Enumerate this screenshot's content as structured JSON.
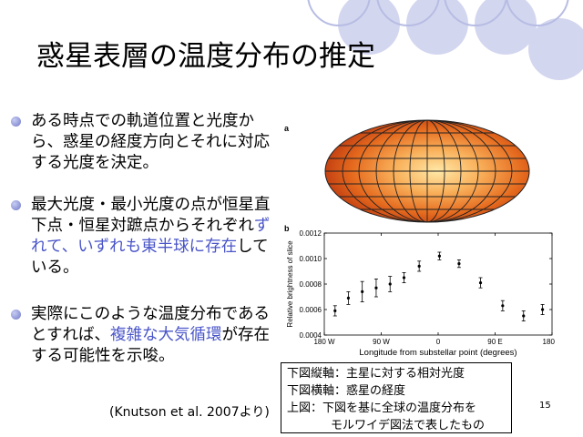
{
  "slide": {
    "title": "惑星表層の温度分布の推定",
    "bullets": [
      {
        "text": "ある時点での軌道位置と光度から、惑星の経度方向とそれに対応する光度を決定。",
        "highlight": "",
        "after": ""
      },
      {
        "text": "最大光度・最小光度の点が恒星直下点・恒星対蹠点からそれぞれ",
        "highlight": "ずれて、いずれも東半球に存在",
        "after": "している。"
      },
      {
        "text": "実際にこのような温度分布であるとすれば、",
        "highlight": "複雑な大気循環",
        "after": "が存在する可能性を示唆。"
      }
    ],
    "citation": "(Knutson et al. 2007より)",
    "page_number": "15",
    "accent_color": "#4a55c8"
  },
  "figure": {
    "panel_a_label": "a",
    "panel_b_label": "b"
  },
  "caption": {
    "lines": [
      "下図縦軸：主星に対する相対光度",
      "下図横軸：惑星の経度",
      "上図：下図を基に全球の温度分布を",
      "モルワイデ図法で表したもの"
    ]
  },
  "chart_data": {
    "type": "scatter",
    "xlabel": "Longitude from substellar point (degrees)",
    "ylabel": "Relative brightness of slice",
    "xlim": [
      -180,
      180
    ],
    "ylim": [
      0.0004,
      0.0012
    ],
    "x_ticks": [
      -180,
      -90,
      0,
      90,
      180
    ],
    "x_tick_labels": [
      "180 W",
      "90 W",
      "0",
      "90 E",
      "180 E"
    ],
    "y_ticks": [
      0.0004,
      0.0006,
      0.0008,
      0.001,
      0.0012
    ],
    "y_tick_labels": [
      "0.0004",
      "0.0006",
      "0.0008",
      "0.0010",
      "0.0012"
    ],
    "points": [
      {
        "x": -163,
        "y": 0.00059,
        "err": 4e-05
      },
      {
        "x": -142,
        "y": 0.00069,
        "err": 5e-05
      },
      {
        "x": -120,
        "y": 0.00074,
        "err": 8e-05
      },
      {
        "x": -98,
        "y": 0.00077,
        "err": 7e-05
      },
      {
        "x": -76,
        "y": 0.0008,
        "err": 6e-05
      },
      {
        "x": -54,
        "y": 0.00085,
        "err": 4e-05
      },
      {
        "x": -30,
        "y": 0.00094,
        "err": 4e-05
      },
      {
        "x": 2,
        "y": 0.00102,
        "err": 3e-05
      },
      {
        "x": 33,
        "y": 0.00096,
        "err": 3e-05
      },
      {
        "x": 67,
        "y": 0.00081,
        "err": 4e-05
      },
      {
        "x": 102,
        "y": 0.00063,
        "err": 4e-05
      },
      {
        "x": 135,
        "y": 0.00055,
        "err": 4e-05
      },
      {
        "x": 165,
        "y": 0.0006,
        "err": 4e-05
      }
    ],
    "grid": false,
    "legend": "none"
  }
}
